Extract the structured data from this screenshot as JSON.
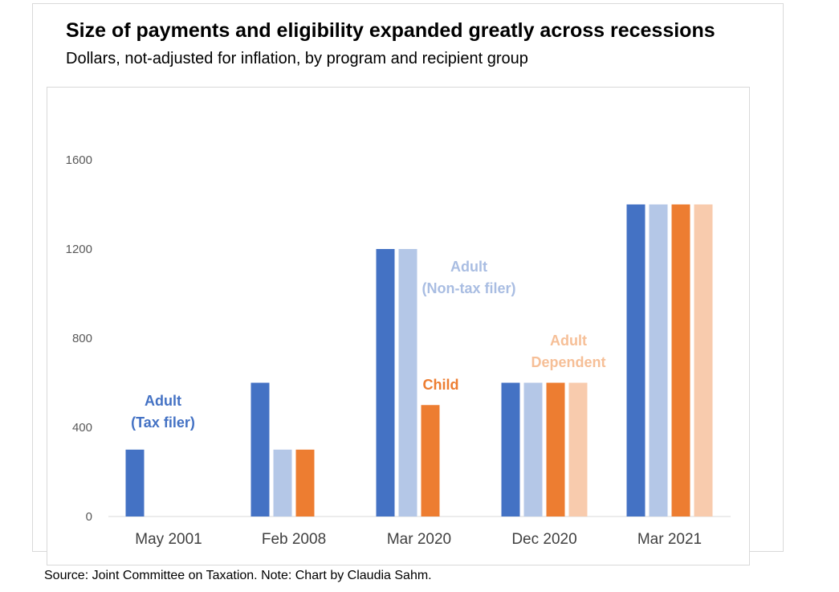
{
  "chart_data": {
    "type": "bar",
    "title": "Size of payments and eligibility expanded greatly across recessions",
    "subtitle": "Dollars, not-adjusted for inflation, by program and recipient group",
    "categories": [
      "May 2001",
      "Feb 2008",
      "Mar 2020",
      "Dec 2020",
      "Mar 2021"
    ],
    "series": [
      {
        "name": "Adult (Tax filer)",
        "color": "#4472c4",
        "values": [
          300,
          600,
          1200,
          600,
          1400
        ]
      },
      {
        "name": "Adult (Non-tax filer)",
        "color": "#b4c7e7",
        "values": [
          null,
          300,
          1200,
          600,
          1400
        ]
      },
      {
        "name": "Child",
        "color": "#ed7d31",
        "values": [
          null,
          300,
          500,
          600,
          1400
        ]
      },
      {
        "name": "Adult Dependent",
        "color": "#f8cbad",
        "values": [
          null,
          null,
          null,
          600,
          1400
        ]
      }
    ],
    "ylim": [
      0,
      1600
    ],
    "yticks": [
      0,
      400,
      800,
      1200,
      1600
    ],
    "ytick_labels": [
      "0",
      "400",
      "800",
      "1200",
      "1600"
    ],
    "grid": false,
    "legend": "none",
    "annotations": [
      {
        "lines": [
          "Adult",
          "(Tax filer)"
        ],
        "color": "#4472c4"
      },
      {
        "lines": [
          "Adult",
          "(Non-tax filer)"
        ],
        "color": "#a9bde2"
      },
      {
        "lines": [
          "Child"
        ],
        "color": "#ed7d31"
      },
      {
        "lines": [
          "Adult",
          "Dependent"
        ],
        "color": "#f6bf97"
      }
    ],
    "xlabel": "",
    "ylabel": ""
  },
  "source_note": "Source: Joint Committee on Taxation. Note: Chart by Claudia Sahm."
}
